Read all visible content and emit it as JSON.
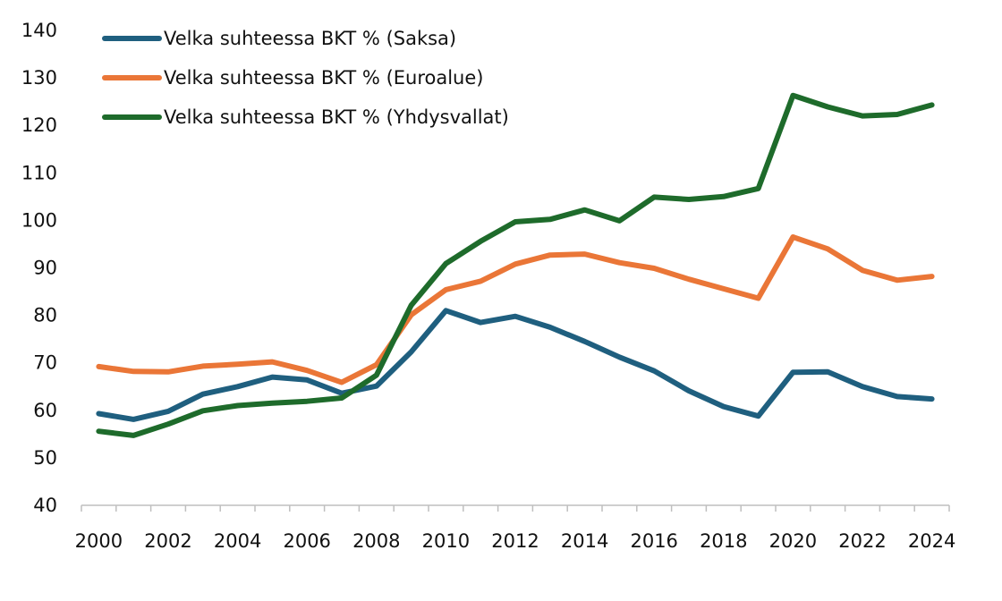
{
  "chart_data": {
    "type": "line",
    "x": [
      2000,
      2001,
      2002,
      2003,
      2004,
      2005,
      2006,
      2007,
      2008,
      2009,
      2010,
      2011,
      2012,
      2013,
      2014,
      2015,
      2016,
      2017,
      2018,
      2019,
      2020,
      2021,
      2022,
      2023,
      2024
    ],
    "x_tick_labels": [
      "2000",
      "2002",
      "2004",
      "2006",
      "2008",
      "2010",
      "2012",
      "2014",
      "2016",
      "2018",
      "2020",
      "2022",
      "2024"
    ],
    "y_tick_labels": [
      "40",
      "50",
      "60",
      "70",
      "80",
      "90",
      "100",
      "110",
      "120",
      "130",
      "140"
    ],
    "ylim": [
      40,
      140
    ],
    "xlim": [
      2000,
      2024
    ],
    "grid": false,
    "legend_position": "top-left",
    "series": [
      {
        "name": "Velka suhteessa BKT % (Saksa)",
        "color": "#1f5f7f",
        "values": [
          59.3,
          58.1,
          59.8,
          63.4,
          65.0,
          67.0,
          66.4,
          63.6,
          65.1,
          72.3,
          81.0,
          78.5,
          79.8,
          77.5,
          74.5,
          71.2,
          68.3,
          64.1,
          60.8,
          58.8,
          68.0,
          68.1,
          65.0,
          62.9,
          62.4
        ]
      },
      {
        "name": "Velka suhteessa BKT % (Euroalue)",
        "color": "#ea7637",
        "values": [
          69.2,
          68.2,
          68.1,
          69.3,
          69.7,
          70.2,
          68.4,
          65.9,
          69.6,
          80.1,
          85.4,
          87.2,
          90.8,
          92.7,
          92.9,
          91.1,
          89.9,
          87.6,
          85.6,
          83.6,
          96.5,
          94.0,
          89.5,
          87.4,
          88.2
        ]
      },
      {
        "name": "Velka suhteessa BKT % (Yhdysvallat)",
        "color": "#1e6b2b",
        "values": [
          55.6,
          54.7,
          57.1,
          59.9,
          61.0,
          61.5,
          61.9,
          62.6,
          67.4,
          82.1,
          90.9,
          95.6,
          99.7,
          100.2,
          102.2,
          99.9,
          104.9,
          104.4,
          105.0,
          106.7,
          126.3,
          123.9,
          122.0,
          122.3,
          124.3
        ]
      }
    ]
  }
}
